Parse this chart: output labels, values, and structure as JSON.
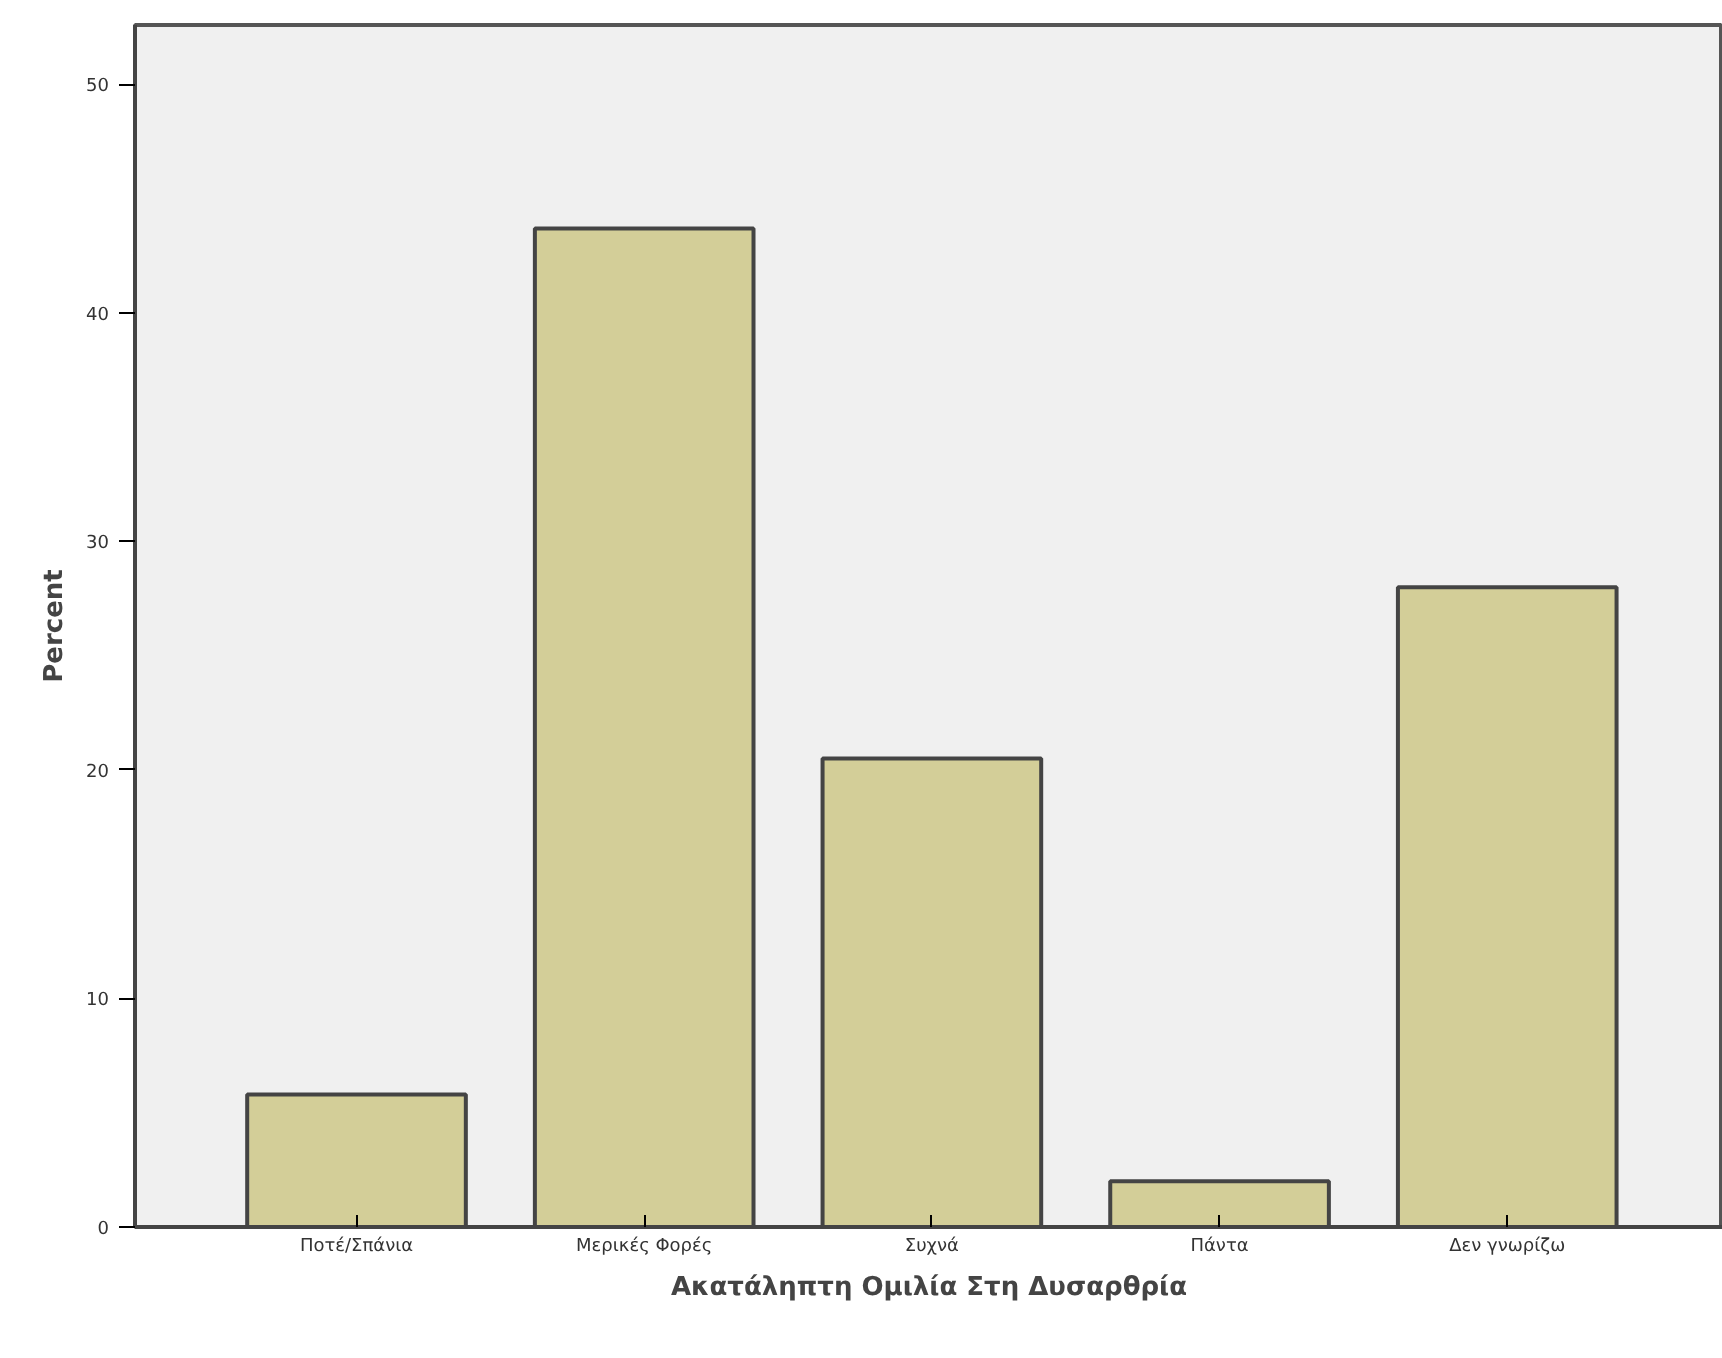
{
  "chart_data": {
    "type": "bar",
    "xlabel": "Ακατάληπτη Ομιλία Στη Δυσαρθρία",
    "ylabel": "Percent",
    "categories": [
      "Ποτέ/Σπάνια",
      "Μερικές Φορές",
      "Συχνά",
      "Πάντα",
      "Δεν γνωρίζω"
    ],
    "values": [
      5.8,
      43.7,
      20.5,
      2.0,
      28.0
    ],
    "color": "#d3ce98",
    "ylim": [
      0,
      52.6
    ],
    "yticks": [
      0,
      10,
      20,
      30,
      40,
      50
    ],
    "grid": false
  }
}
